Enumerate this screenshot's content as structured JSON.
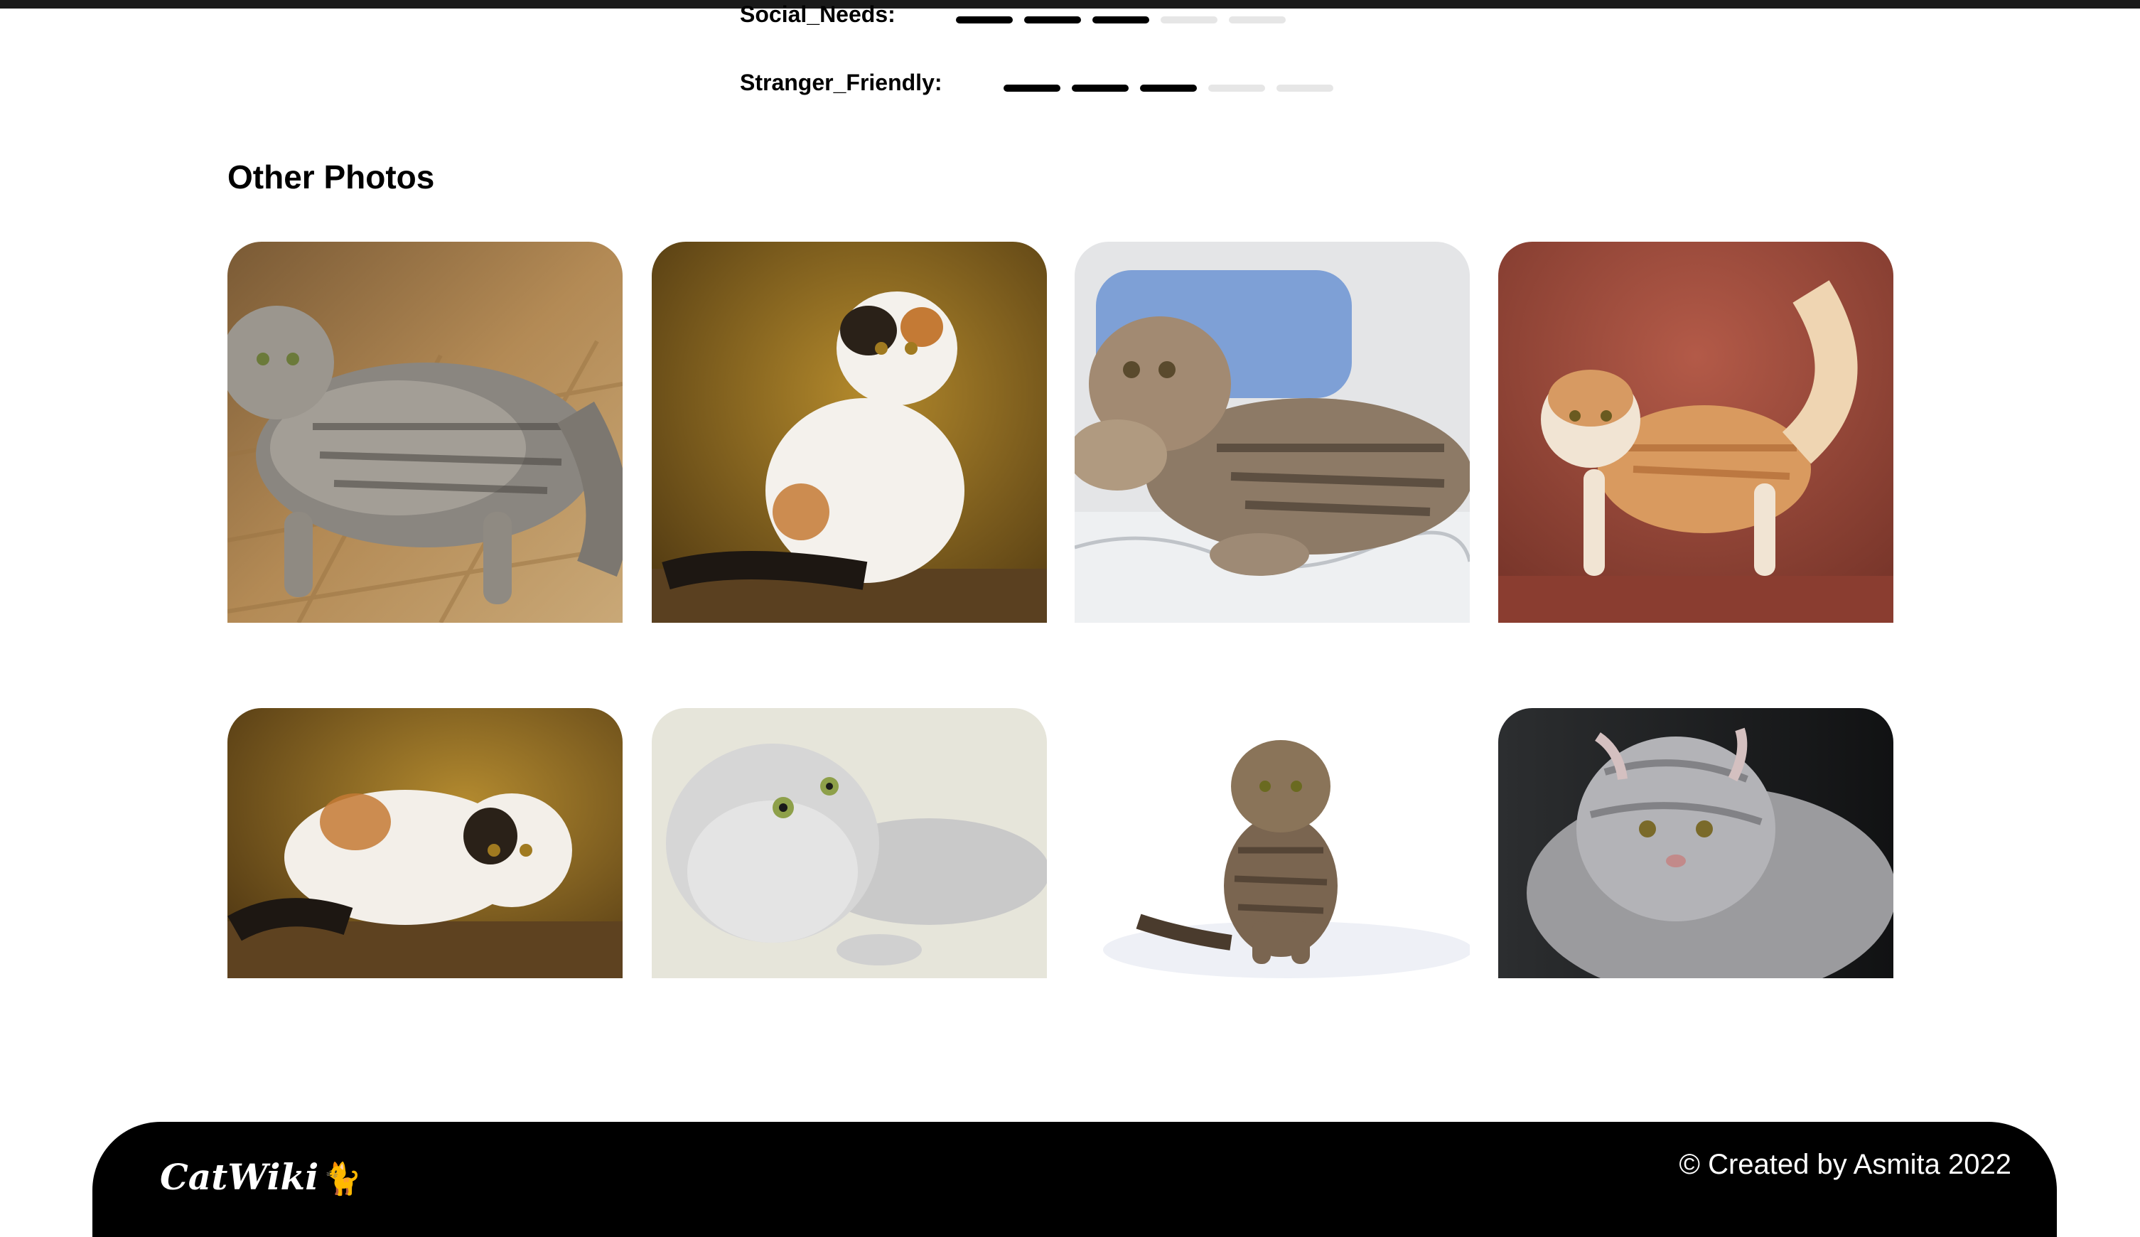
{
  "attributes": [
    {
      "label": "Social_Needs:",
      "rating": 3,
      "max": 5
    },
    {
      "label": "Stranger_Friendly:",
      "rating": 3,
      "max": 5
    }
  ],
  "section_title": "Other Photos",
  "photos": [
    {
      "name": "brown-tabby-cat-on-parquet-floor"
    },
    {
      "name": "calico-cat-sitting"
    },
    {
      "name": "tabby-cat-lying-on-bed"
    },
    {
      "name": "orange-white-cat-standing"
    },
    {
      "name": "calico-cat-crouching"
    },
    {
      "name": "silver-longhair-cat-lying"
    },
    {
      "name": "tabby-kitten-sitting"
    },
    {
      "name": "silver-tabby-cat-portrait"
    }
  ],
  "footer": {
    "logo": "CatWiki",
    "logo_icon": "cat-icon",
    "credit": "© Created by Asmita 2022"
  },
  "colors": {
    "bar_filled": "#000000",
    "bar_empty": "#e6e6e6",
    "footer_bg": "#000000"
  }
}
